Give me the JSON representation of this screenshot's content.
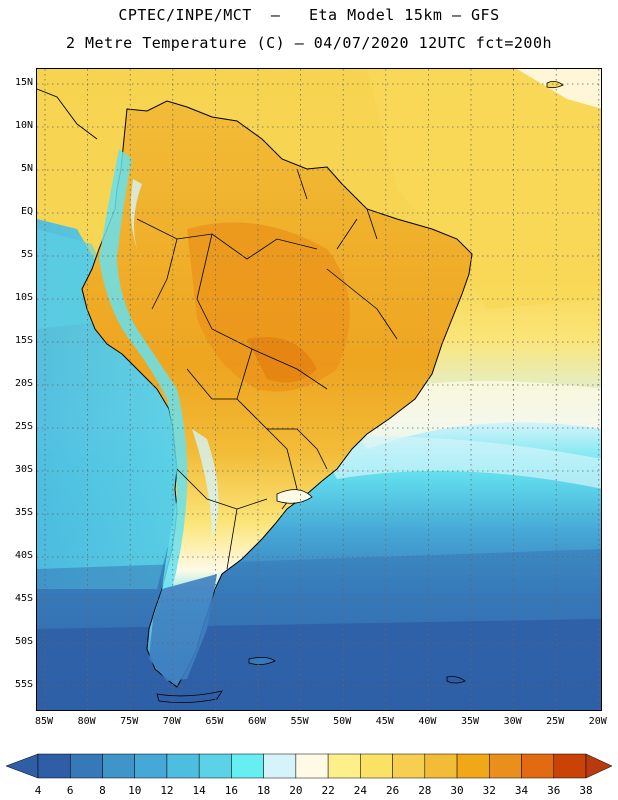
{
  "title_line1": "CPTEC/INPE/MCT  –   Eta Model 15km – GFS",
  "title_line2": "2 Metre Temperature (C) – 04/07/2020 12UTC fct=200h",
  "lat_labels": [
    "15N",
    "10N",
    "5N",
    "EQ",
    "5S",
    "10S",
    "15S",
    "20S",
    "25S",
    "30S",
    "35S",
    "40S",
    "45S",
    "50S",
    "55S"
  ],
  "lon_labels": [
    "85W",
    "80W",
    "75W",
    "70W",
    "65W",
    "60W",
    "55W",
    "50W",
    "45W",
    "40W",
    "35W",
    "30W",
    "25W",
    "20W"
  ],
  "colorbar": {
    "labels": [
      "4",
      "6",
      "8",
      "10",
      "12",
      "14",
      "16",
      "18",
      "20",
      "22",
      "24",
      "26",
      "28",
      "30",
      "32",
      "34",
      "36",
      "38"
    ],
    "colors": [
      "#2f5ea6",
      "#3779b8",
      "#3f94c8",
      "#46a8d6",
      "#4dbde0",
      "#5bd2e6",
      "#66eef2",
      "#d4f4fa",
      "#fffae6",
      "#fdf08a",
      "#fbe265",
      "#f6cf50",
      "#f2bc38",
      "#f0a818",
      "#eb8f1c",
      "#e26a10",
      "#c94306"
    ],
    "low_color": "#2f5ea6",
    "high_color": "#b83a0e"
  },
  "colors": {
    "ocean_pacific": "#4bbcdc",
    "ocean_south": "#2e5fa6",
    "continent_warm": "#f2bc38",
    "continent_hot": "#eb9f1c",
    "atlantic_north": "#f7cf4e",
    "andes": "#6ad8e6",
    "patagonia": "#3f94c8"
  }
}
